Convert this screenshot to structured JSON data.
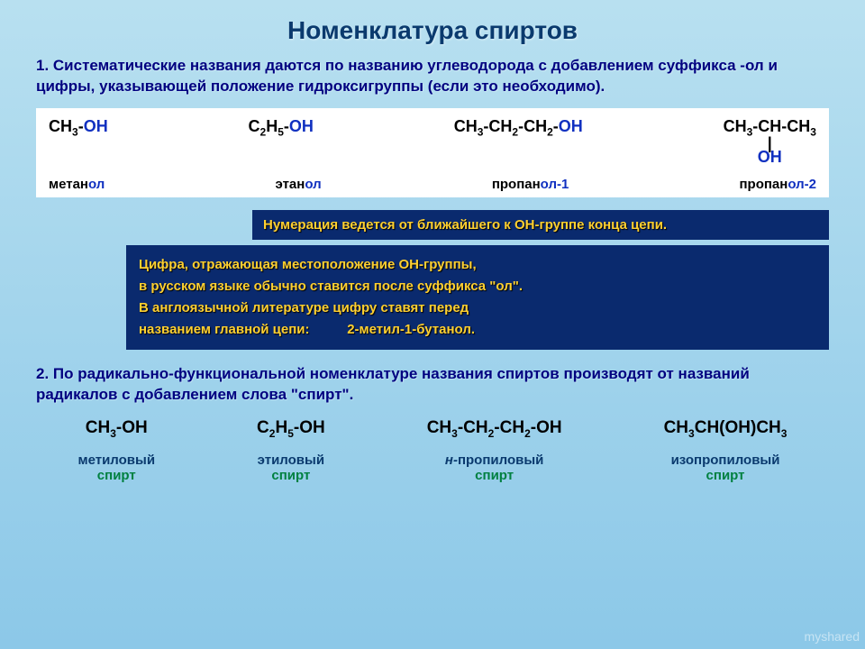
{
  "title": "Номенклатура спиртов",
  "para1": "1.  Систематические названия даются по названию углеводорода с добавлением суффикса -ол и цифры, указывающей положение гидроксигруппы (если это необходимо).",
  "formulas": {
    "col1": {
      "main": "CH",
      "sub1": "3",
      "dash": "-",
      "oh": "OH",
      "name_pre": "метан",
      "name_suf": "ол"
    },
    "col2": {
      "main": "C",
      "sub1": "2",
      "main2": "H",
      "sub2": "5",
      "dash": "-",
      "oh": "OH",
      "name_pre": "этан",
      "name_suf": "ол"
    },
    "col3": {
      "parts": "CH3-CH2-CH2-",
      "oh": "OH",
      "name_pre": "пропан",
      "name_suf": "ол-1"
    },
    "col4": {
      "parts": "CH3-CH-CH3",
      "branch_line": "|",
      "branch_oh": "OH",
      "name_pre": "пропан",
      "name_suf": "ол-2"
    }
  },
  "notice": "Нумерация ведется от ближайшего к ОН-группе конца цепи.",
  "infobox": {
    "l1": "Цифра, отражающая местоположение ОН-группы,",
    "l2": "в русском языке обычно ставится после суффикса \"ол\".",
    "l3": "В англоязычной литературе цифру ставят перед",
    "l4": "названием главной цепи:          2-метил-1-бутанол."
  },
  "para2_pre": "2. По радикально-функциональной номенклатуре названия спиртов производят от названий радикалов с добавлением слова ",
  "para2_quote": "\"спирт\".",
  "radicals": {
    "r1": {
      "f": "CH3-OH",
      "n1": "метиловый",
      "n2": "спирт"
    },
    "r2": {
      "f": "C2H5-OH",
      "n1": "этиловый",
      "n2": "спирт"
    },
    "r3": {
      "f": "CH3-CH2-CH2-OH",
      "n1_it": "н-",
      "n1": "пропиловый",
      "n2": "спирт"
    },
    "r4": {
      "f": "CH3CH(OH)CH3",
      "n1": "изопропиловый",
      "n2": "спирт"
    }
  },
  "watermark": "myshared"
}
